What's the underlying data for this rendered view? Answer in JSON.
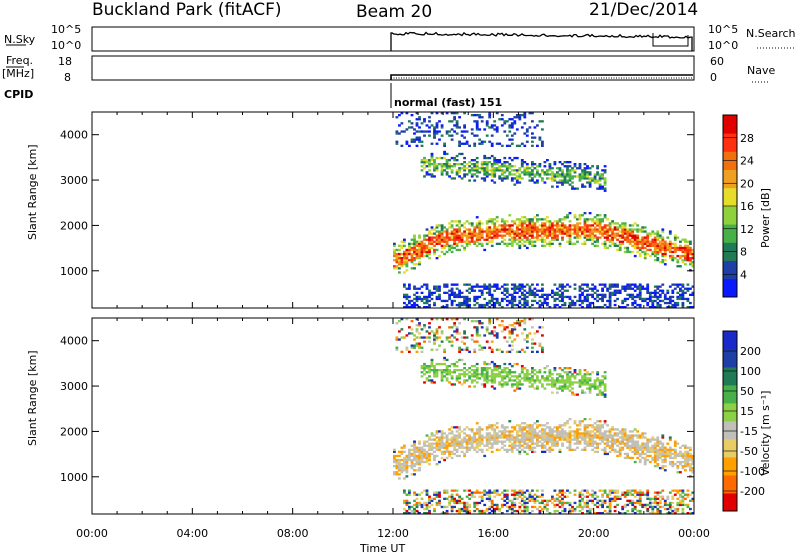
{
  "header": {
    "station": "Buckland Park (fitACF)",
    "beam": "Beam 20",
    "date": "21/Dec/2014"
  },
  "panels": {
    "nsky_label": "N.Sky",
    "nsearch_label": "N.Search",
    "nsky_ticks": [
      "10^5",
      "10^0"
    ],
    "nsearch_ticks": [
      "10^5",
      "10^0"
    ],
    "freq_label": "Freq.",
    "freq_unit": "[MHz]",
    "freq_ticks": [
      "18",
      "8"
    ],
    "nave_label": "Nave",
    "nave_ticks": [
      "60",
      "0"
    ],
    "cpid_label": "CPID",
    "cpid_text": "normal (fast) 151"
  },
  "colors": {
    "power": [
      "#0a1aff",
      "#1e3fa6",
      "#1f7a55",
      "#47b048",
      "#8fd13c",
      "#e6dc2a",
      "#f0a020",
      "#f07010",
      "#ff3010",
      "#e00000"
    ],
    "velocity": [
      "#e00000",
      "#ff6a00",
      "#ffa000",
      "#e8cc66",
      "#c0c0b8",
      "#8cd046",
      "#47b048",
      "#1f7a55",
      "#1e3fa6",
      "#1a2ac8"
    ]
  },
  "chart_data": [
    {
      "type": "heatmap",
      "title": "",
      "xlabel": "Time UT",
      "ylabel": "Slant Range [km]",
      "x_ticks": [
        "00:00",
        "04:00",
        "08:00",
        "12:00",
        "16:00",
        "20:00",
        "00:00"
      ],
      "y_ticks": [
        "1000",
        "2000",
        "3000",
        "4000"
      ],
      "ylim": [
        180,
        4500
      ],
      "data_start": "12:00",
      "colorbar_label": "Power [dB]",
      "colorbar_ticks": [
        "4",
        "8",
        "12",
        "16",
        "20",
        "24",
        "28"
      ],
      "colorbar_range": [
        0,
        32
      ]
    },
    {
      "type": "heatmap",
      "title": "",
      "xlabel": "Time UT",
      "ylabel": "Slant Range [km]",
      "x_ticks": [
        "00:00",
        "04:00",
        "08:00",
        "12:00",
        "16:00",
        "20:00",
        "00:00"
      ],
      "y_ticks": [
        "1000",
        "2000",
        "3000",
        "4000"
      ],
      "ylim": [
        180,
        4500
      ],
      "data_start": "12:00",
      "colorbar_label": "Velocity [m s⁻¹]",
      "colorbar_ticks": [
        "-200",
        "-100",
        "-50",
        "-15",
        "15",
        "50",
        "100",
        "200"
      ]
    }
  ]
}
